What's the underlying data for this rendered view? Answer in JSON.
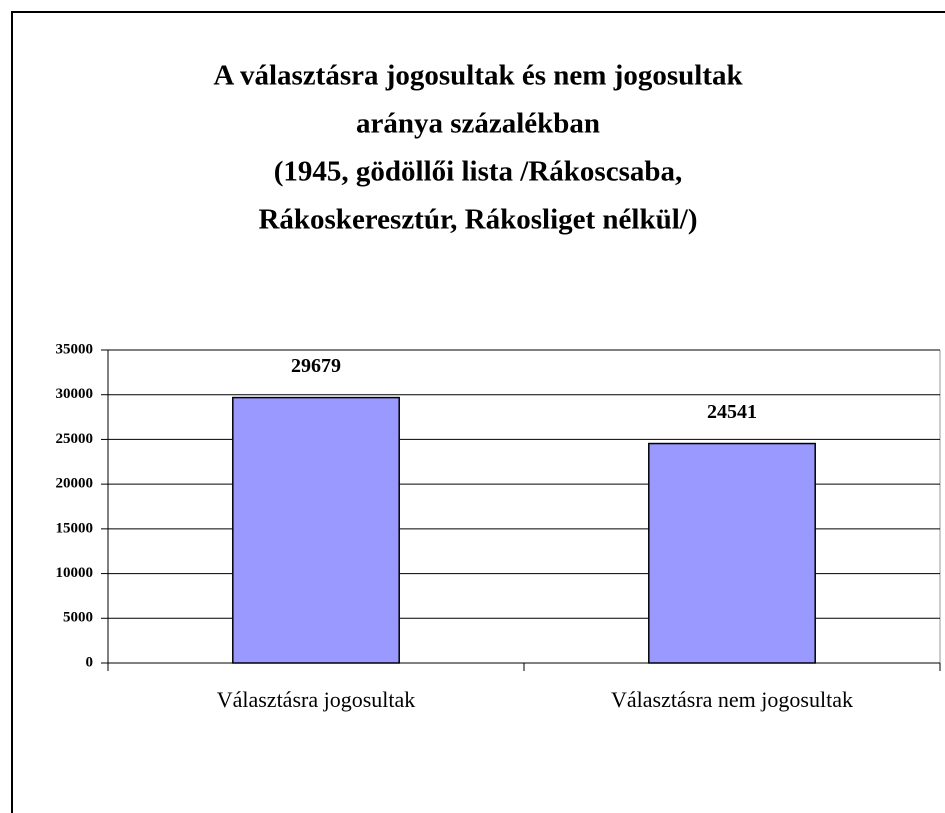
{
  "chart_data": {
    "type": "bar",
    "title": [
      "A választásra jogosultak és nem jogosultak",
      "aránya százalékban",
      "(1945, gödöllői lista /Rákoscsaba,",
      "Rákoskeresztúr, Rákosliget nélkül/)"
    ],
    "categories": [
      "Választásra jogosultak",
      "Választásra nem jogosultak"
    ],
    "values": [
      29679,
      24541
    ],
    "color": "#9999ff",
    "ylim": [
      0,
      35000
    ],
    "yticks": [
      0,
      5000,
      10000,
      15000,
      20000,
      25000,
      30000,
      35000
    ],
    "grid": true
  }
}
